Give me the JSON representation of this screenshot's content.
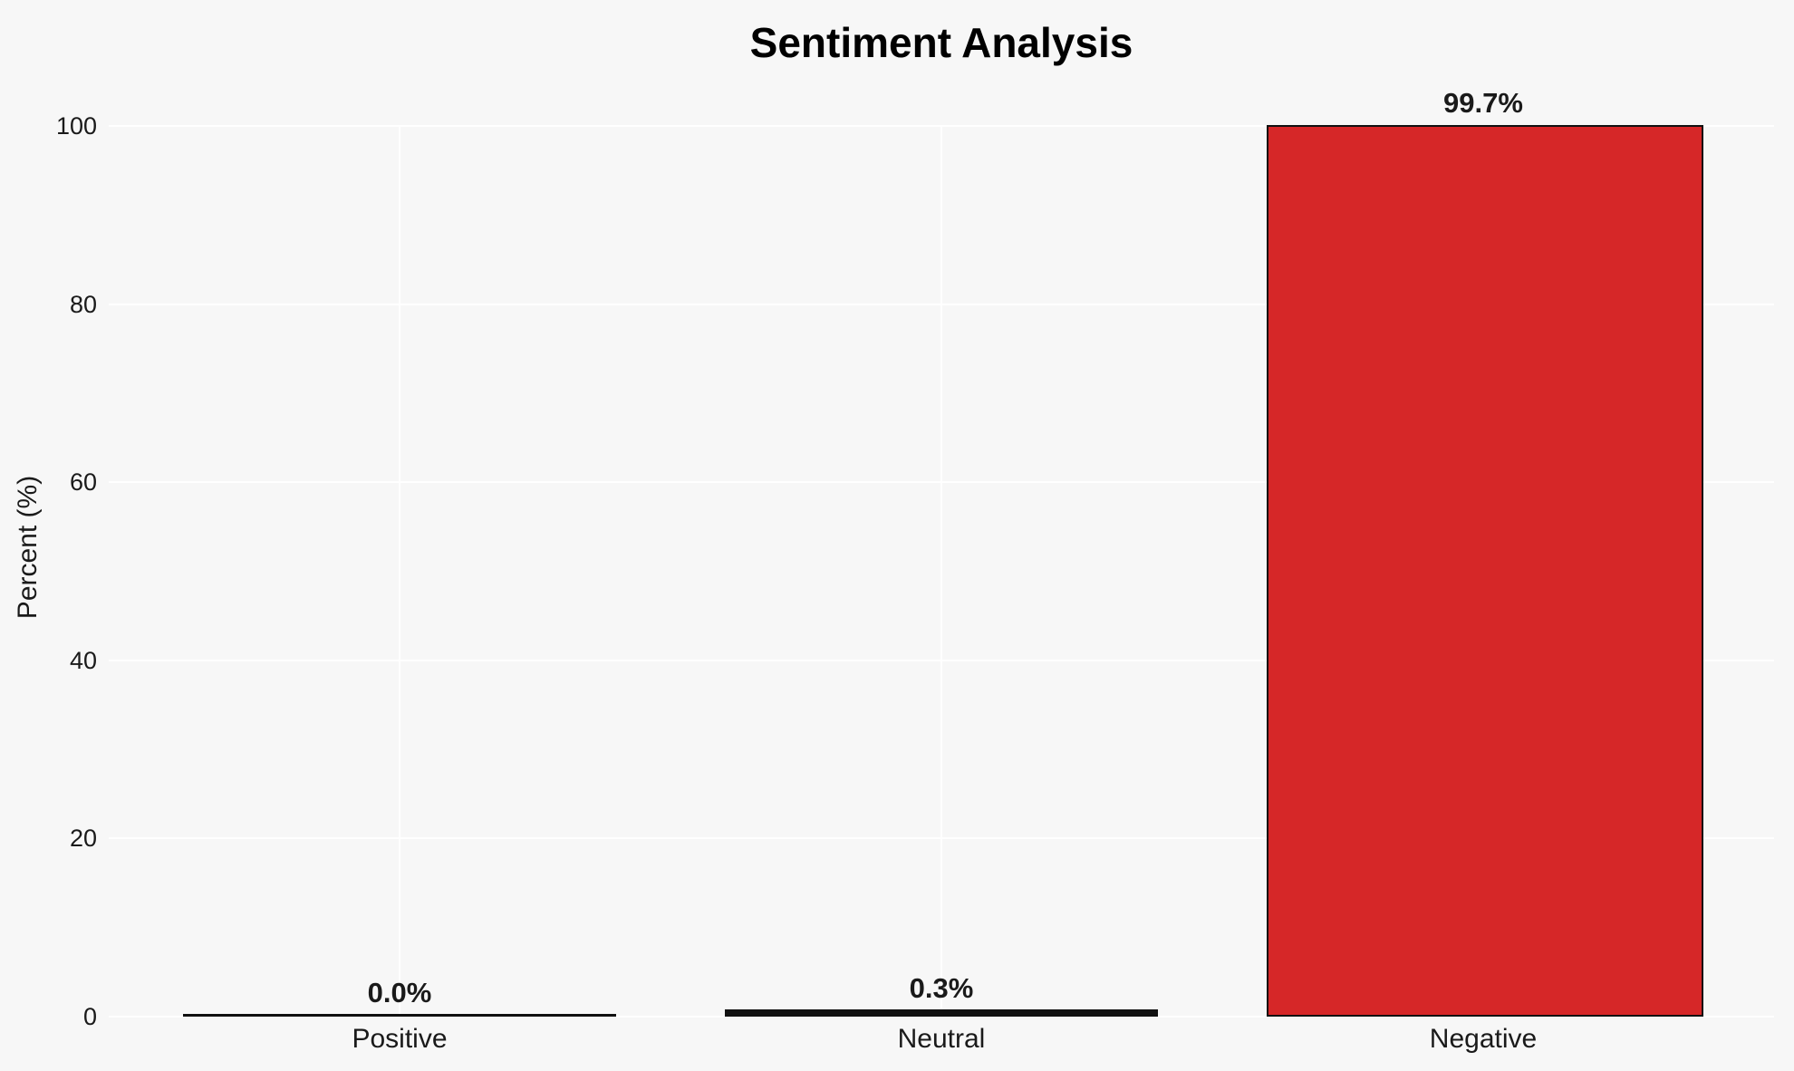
{
  "figure": {
    "background": "#f7f7f7"
  },
  "chart_data": {
    "type": "bar",
    "title": "Sentiment Analysis",
    "xlabel": "",
    "ylabel": "Percent (%)",
    "categories": [
      "Positive",
      "Neutral",
      "Negative"
    ],
    "values": [
      0.0,
      0.3,
      99.7
    ],
    "value_labels": [
      "0.0%",
      "0.3%",
      "99.7%"
    ],
    "yticks": [
      0,
      20,
      40,
      60,
      80,
      100
    ],
    "ylim": [
      0,
      100
    ],
    "grid": true,
    "legend": "none",
    "gridline_color": "#ffffff",
    "bar_fill_color": "#d62728",
    "bar_edge_color": "#111111",
    "text_color": "#1a1a1a",
    "title_color": "#000000"
  }
}
